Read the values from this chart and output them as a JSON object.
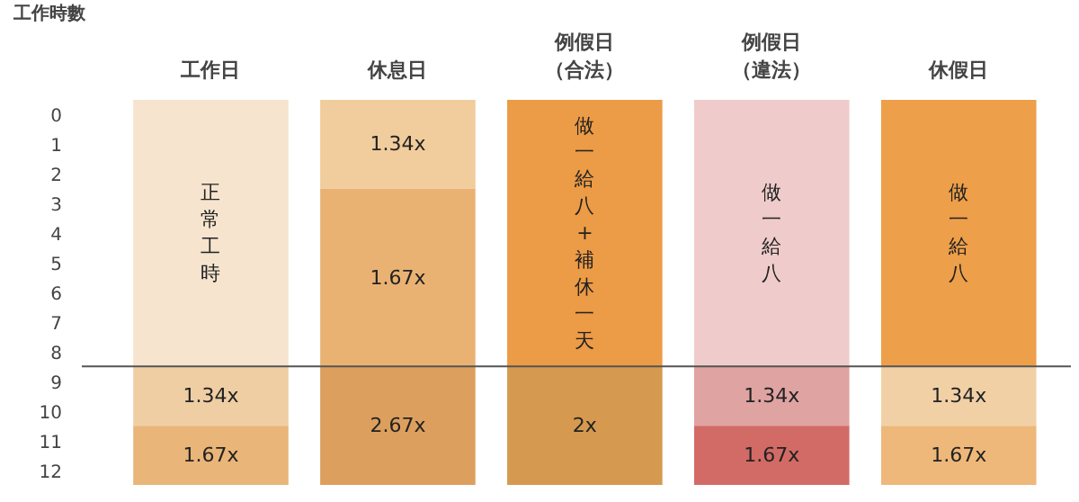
{
  "chart_data": {
    "type": "bar",
    "stacked": true,
    "ylabel": "工作時數",
    "categories": [
      "工作日",
      "休息日",
      "例假日（合法）",
      "例假日（違法）",
      "休假日"
    ],
    "series": [
      {
        "colors": [
          "#f6e4cf",
          "#f1cc9c",
          "#ec9b46",
          "#efcccb",
          "#ee9f4a"
        ],
        "values": [
          9,
          3,
          9,
          9,
          9
        ]
      },
      {
        "colors": [
          "#efcea4",
          "#e9b273",
          "#d59950",
          "#dfa3a2",
          "#f2d0a6"
        ],
        "values": [
          2,
          6,
          4,
          2,
          2
        ]
      },
      {
        "colors": [
          "#e9b578",
          "#dd9f5d",
          null,
          "#d26a66",
          "#eeb87a"
        ],
        "values": [
          2,
          4,
          null,
          2,
          2
        ]
      }
    ],
    "annotations": [
      "正常工時",
      "1.34x",
      "1.67x",
      "1.34x",
      "1.67x",
      "2.67x",
      "做一給八+補休一天",
      "2x",
      "做一給八",
      "1.34x",
      "1.67x",
      "做一給八",
      "1.34x",
      "1.67x"
    ],
    "ylim": [
      13,
      0
    ],
    "yticks": [
      {
        "value": 0.5,
        "label": "0"
      },
      {
        "value": 1.5,
        "label": "1"
      },
      {
        "value": 2.5,
        "label": "2"
      },
      {
        "value": 3.5,
        "label": "3"
      },
      {
        "value": 4.5,
        "label": "4"
      },
      {
        "value": 5.5,
        "label": "5"
      },
      {
        "value": 6.5,
        "label": "6"
      },
      {
        "value": 7.5,
        "label": "7"
      },
      {
        "value": 8.5,
        "label": "8"
      },
      {
        "value": 9.5,
        "label": "9"
      },
      {
        "value": 10.5,
        "label": "10"
      },
      {
        "value": 11.5,
        "label": "11"
      },
      {
        "value": 12.5,
        "label": "12"
      }
    ],
    "ref_lines": [
      {
        "axis": "y",
        "value": 9,
        "label": null,
        "color": "#555555"
      }
    ],
    "grid": false
  }
}
